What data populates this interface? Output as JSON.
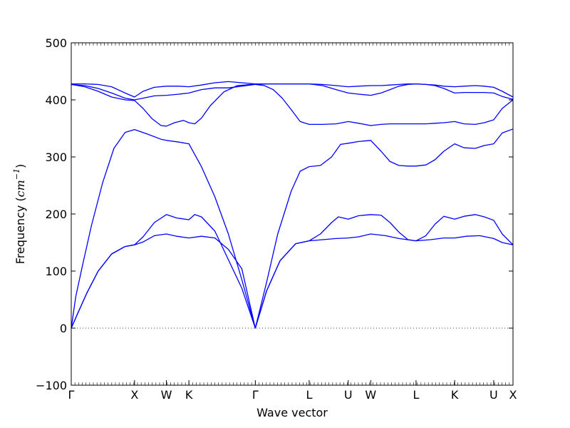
{
  "chart_data": {
    "type": "line",
    "title": "",
    "xlabel": "Wave vector",
    "ylabel": "Frequency (cm⁻¹)",
    "ylabel_prefix": "Frequency (",
    "ylabel_unit": "cm",
    "ylabel_exp": "−1",
    "ylabel_suffix": ")",
    "ylim": [
      -100,
      500
    ],
    "yticks": [
      -100,
      0,
      100,
      200,
      300,
      400,
      500
    ],
    "xlim": [
      0,
      9.84
    ],
    "xticks": [
      {
        "label": "Γ",
        "x": 0
      },
      {
        "label": "X",
        "x": 1.41
      },
      {
        "label": "W",
        "x": 2.12
      },
      {
        "label": "K",
        "x": 2.62
      },
      {
        "label": "Γ",
        "x": 4.1
      },
      {
        "label": "L",
        "x": 5.3
      },
      {
        "label": "U",
        "x": 6.17
      },
      {
        "label": "W",
        "x": 6.67
      },
      {
        "label": "L",
        "x": 7.68
      },
      {
        "label": "K",
        "x": 8.54
      },
      {
        "label": "U",
        "x": 9.41
      },
      {
        "label": "X",
        "x": 9.84
      }
    ],
    "zero_line": {
      "y": 0,
      "style": "dotted"
    },
    "line_color": "#0000ff",
    "series": [
      {
        "x": [
          0,
          0.15,
          0.35,
          0.6,
          0.9,
          1.2,
          1.41,
          1.6,
          1.85,
          2.12,
          2.35,
          2.62,
          2.9,
          3.2,
          3.5,
          3.8,
          4.1,
          4.35,
          4.65,
          5.0,
          5.3,
          5.6,
          5.9,
          6.17,
          6.4,
          6.67,
          7.0,
          7.3,
          7.68,
          8.0,
          8.3,
          8.54,
          8.8,
          9.1,
          9.41,
          9.6,
          9.84
        ],
        "y": [
          0,
          27,
          62,
          100,
          130,
          143,
          146,
          151,
          162,
          165,
          161,
          158,
          161,
          158,
          138,
          104,
          0,
          65,
          118,
          148,
          153,
          155,
          157,
          158,
          160,
          165,
          162,
          157,
          153,
          155,
          158,
          158,
          161,
          162,
          157,
          150,
          146
        ]
      },
      {
        "x": [
          0,
          0.15,
          0.35,
          0.6,
          0.9,
          1.2,
          1.41,
          1.6,
          1.85,
          2.12,
          2.35,
          2.62,
          2.75,
          2.9,
          3.2,
          3.5,
          3.8,
          4.1,
          4.35,
          4.65,
          5.0,
          5.3,
          5.55,
          5.8,
          5.95,
          6.17,
          6.4,
          6.67,
          6.9,
          7.1,
          7.3,
          7.5,
          7.68,
          7.9,
          8.1,
          8.3,
          8.54,
          8.75,
          9.0,
          9.2,
          9.41,
          9.6,
          9.84
        ],
        "y": [
          0,
          27,
          62,
          100,
          130,
          143,
          146,
          160,
          185,
          199,
          193,
          190,
          199,
          195,
          170,
          120,
          70,
          0,
          65,
          118,
          148,
          153,
          165,
          185,
          195,
          191,
          197,
          199,
          198,
          185,
          168,
          155,
          153,
          162,
          182,
          196,
          191,
          196,
          199,
          195,
          189,
          165,
          146
        ]
      },
      {
        "x": [
          0,
          0.1,
          0.25,
          0.45,
          0.7,
          0.95,
          1.2,
          1.41,
          1.7,
          2.0,
          2.12,
          2.4,
          2.62,
          2.9,
          3.2,
          3.5,
          3.8,
          4.1,
          4.35,
          4.6,
          4.9,
          5.1,
          5.3,
          5.55,
          5.8,
          6.0,
          6.17,
          6.4,
          6.67,
          6.9,
          7.1,
          7.3,
          7.5,
          7.68,
          7.9,
          8.1,
          8.3,
          8.54,
          8.75,
          9.0,
          9.2,
          9.41,
          9.6,
          9.84
        ],
        "y": [
          0,
          55,
          110,
          180,
          255,
          315,
          343,
          348,
          340,
          331,
          329,
          326,
          323,
          283,
          230,
          165,
          85,
          0,
          80,
          165,
          240,
          275,
          283,
          285,
          300,
          322,
          324,
          327,
          329,
          310,
          292,
          285,
          284,
          284,
          286,
          295,
          310,
          323,
          316,
          315,
          320,
          323,
          342,
          349
        ]
      },
      {
        "x": [
          0,
          0.3,
          0.6,
          0.9,
          1.2,
          1.41,
          1.6,
          1.8,
          2.0,
          2.12,
          2.3,
          2.5,
          2.62,
          2.75,
          2.9,
          3.1,
          3.4,
          3.7,
          4.0,
          4.1,
          4.3,
          4.5,
          4.7,
          4.9,
          5.1,
          5.3,
          5.6,
          5.9,
          6.17,
          6.4,
          6.67,
          6.9,
          7.1,
          7.3,
          7.5,
          7.68,
          7.9,
          8.1,
          8.3,
          8.54,
          8.75,
          9.0,
          9.2,
          9.41,
          9.6,
          9.84
        ],
        "y": [
          427,
          423,
          415,
          405,
          400,
          399,
          385,
          367,
          355,
          354,
          360,
          364,
          360,
          358,
          368,
          390,
          414,
          425,
          427,
          427,
          425,
          418,
          403,
          383,
          362,
          357,
          357,
          358,
          362,
          359,
          355,
          357,
          358,
          358,
          358,
          358,
          358,
          359,
          360,
          362,
          358,
          357,
          360,
          365,
          385,
          400
        ]
      },
      {
        "x": [
          0,
          0.3,
          0.6,
          0.9,
          1.2,
          1.41,
          1.6,
          1.85,
          2.12,
          2.4,
          2.62,
          2.9,
          3.2,
          3.5,
          3.8,
          4.1,
          4.4,
          4.8,
          5.3,
          5.6,
          5.9,
          6.17,
          6.4,
          6.67,
          6.9,
          7.1,
          7.3,
          7.5,
          7.68,
          7.9,
          8.1,
          8.3,
          8.54,
          8.75,
          9.0,
          9.2,
          9.41,
          9.6,
          9.84
        ],
        "y": [
          427,
          425,
          420,
          412,
          403,
          400,
          403,
          407,
          408,
          410,
          412,
          418,
          421,
          421,
          424,
          427,
          428,
          428,
          428,
          425,
          418,
          412,
          410,
          408,
          412,
          418,
          424,
          427,
          428,
          427,
          425,
          420,
          412,
          413,
          413,
          413,
          412,
          406,
          401
        ]
      },
      {
        "x": [
          0,
          0.3,
          0.6,
          0.9,
          1.2,
          1.41,
          1.6,
          1.85,
          2.12,
          2.4,
          2.62,
          2.9,
          3.2,
          3.5,
          3.8,
          4.1,
          4.4,
          4.8,
          5.3,
          5.6,
          5.9,
          6.17,
          6.4,
          6.67,
          6.9,
          7.1,
          7.3,
          7.5,
          7.68,
          7.9,
          8.1,
          8.3,
          8.54,
          8.75,
          9.0,
          9.2,
          9.41,
          9.6,
          9.84
        ],
        "y": [
          428,
          428,
          427,
          423,
          412,
          405,
          415,
          422,
          424,
          424,
          423,
          426,
          430,
          432,
          430,
          428,
          428,
          428,
          428,
          427,
          425,
          423,
          424,
          425,
          425,
          426,
          427,
          428,
          428,
          427,
          426,
          424,
          423,
          424,
          425,
          424,
          422,
          415,
          405
        ]
      }
    ]
  }
}
